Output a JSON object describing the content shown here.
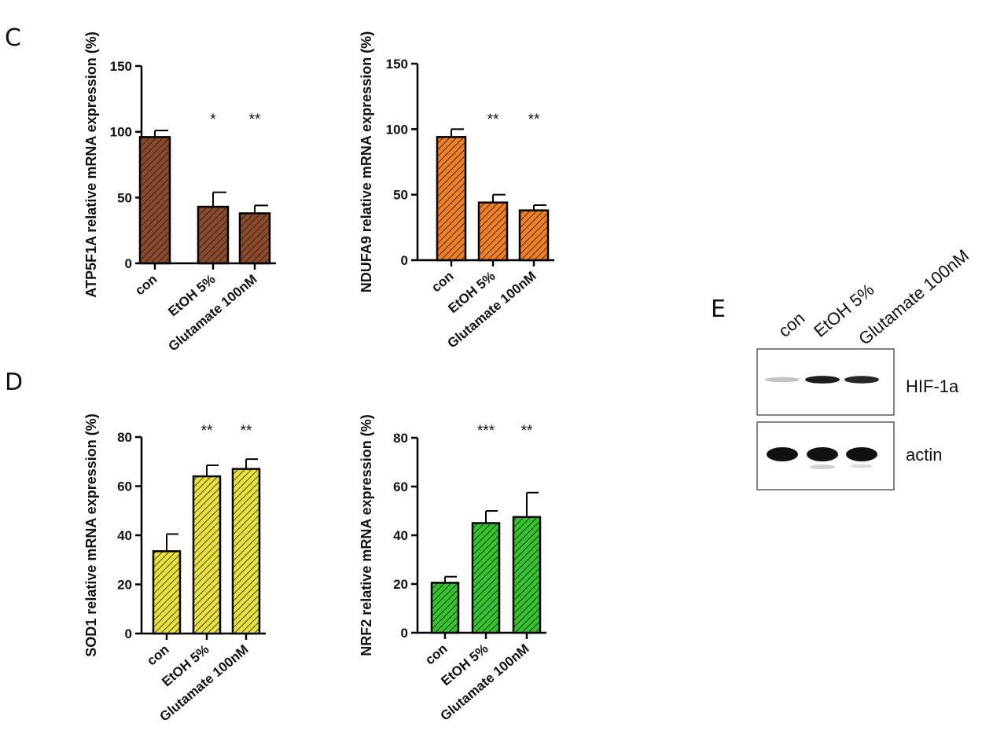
{
  "panels": {
    "c": "C",
    "d": "D",
    "e": "E"
  },
  "chart_data": [
    {
      "type": "bar",
      "title": "",
      "xlabel": "",
      "ylabel": "ATP5F1A relative mRNA expression (%)",
      "categories": [
        "con",
        "EtOH 5%",
        "Glutamate 100nM"
      ],
      "values": [
        96,
        43,
        38
      ],
      "errors": [
        5,
        11,
        6
      ],
      "significance": [
        "",
        "*",
        "**"
      ],
      "ylim": [
        0,
        150
      ],
      "yticks": [
        0,
        50,
        100,
        150
      ],
      "color": "#8B4A2B",
      "hatch": true,
      "grid": false
    },
    {
      "type": "bar",
      "title": "",
      "xlabel": "",
      "ylabel": "NDUFA9 relative mRNA expression (%)",
      "categories": [
        "con",
        "EtOH 5%",
        "Glutamate 100nM"
      ],
      "values": [
        94,
        44,
        38
      ],
      "errors": [
        6,
        6,
        4
      ],
      "significance": [
        "",
        "**",
        "**"
      ],
      "ylim": [
        0,
        150
      ],
      "yticks": [
        0,
        50,
        100,
        150
      ],
      "color": "#F07F26",
      "hatch": true,
      "grid": false
    },
    {
      "type": "bar",
      "title": "",
      "xlabel": "",
      "ylabel": "SOD1 relative mRNA expression (%)",
      "categories": [
        "con",
        "EtOH 5%",
        "Glutamate 100nM"
      ],
      "values": [
        33.5,
        64,
        67
      ],
      "errors": [
        7,
        4.5,
        4
      ],
      "significance": [
        "",
        "**",
        "**"
      ],
      "ylim": [
        0,
        80
      ],
      "yticks": [
        0,
        20,
        40,
        60,
        80
      ],
      "color": "#EAE23A",
      "hatch": true,
      "grid": false
    },
    {
      "type": "bar",
      "title": "",
      "xlabel": "",
      "ylabel": "NRF2 relative mRNA expression (%)",
      "categories": [
        "con",
        "EtOH 5%",
        "Glutamate 100nM"
      ],
      "values": [
        20.5,
        45,
        47.5
      ],
      "errors": [
        2.5,
        5,
        10
      ],
      "significance": [
        "",
        "***",
        "**"
      ],
      "ylim": [
        0,
        80
      ],
      "yticks": [
        0,
        20,
        40,
        60,
        80
      ],
      "color": "#36C22F",
      "hatch": true,
      "grid": false
    }
  ],
  "blot": {
    "lanes": [
      "con",
      "EtOH 5%",
      "Glutamate 100nM"
    ],
    "proteins": [
      "HIF-1a",
      "actin"
    ],
    "band_intensity": [
      [
        0.25,
        0.95,
        0.9
      ],
      [
        1.0,
        1.0,
        1.0
      ]
    ]
  }
}
